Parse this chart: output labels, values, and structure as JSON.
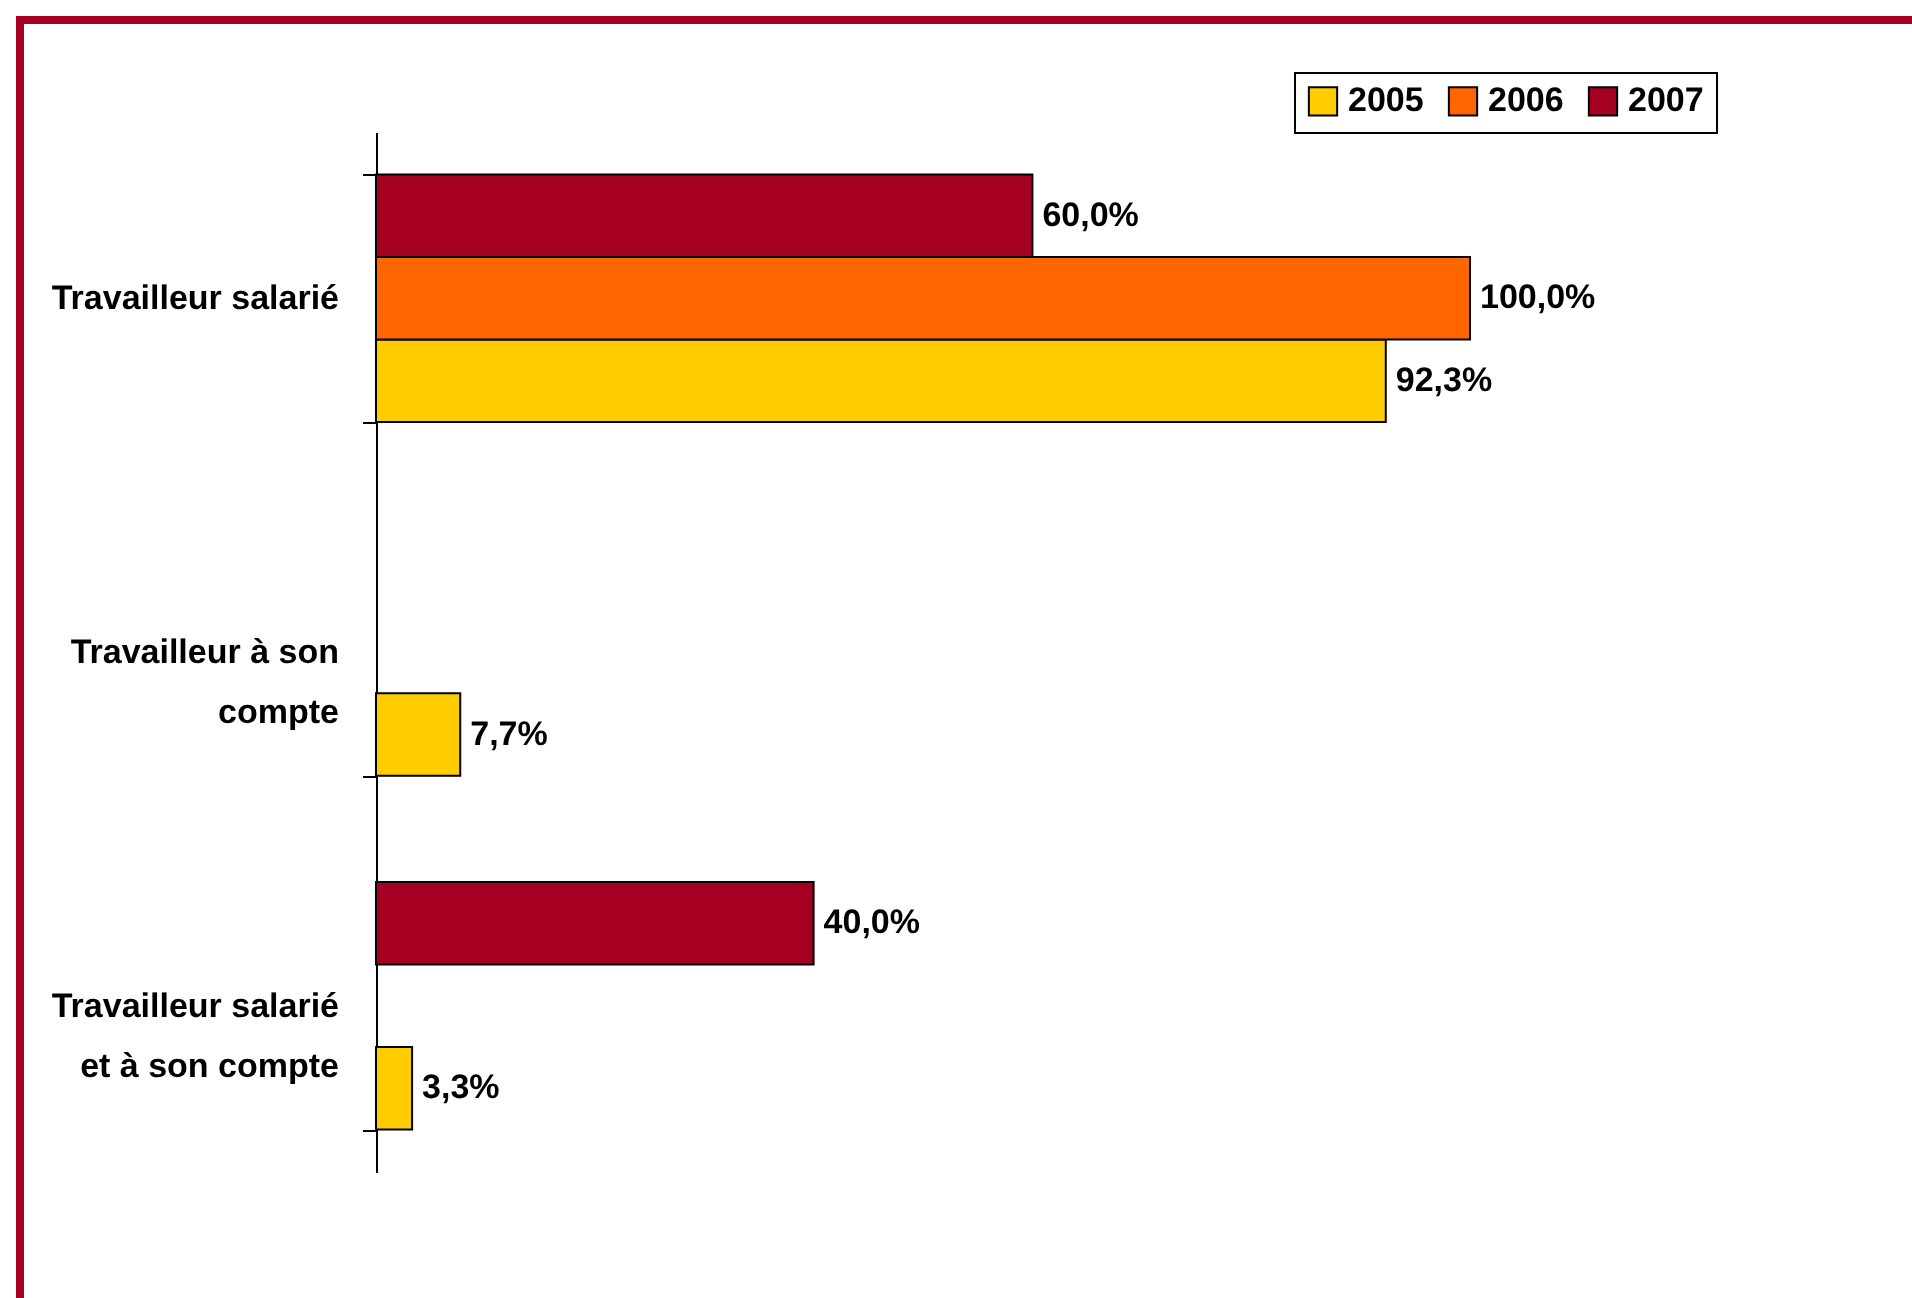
{
  "chart_data": {
    "type": "bar",
    "orientation": "horizontal",
    "categories": [
      "Travailleur salarié",
      "Travailleur à son compte",
      "Travailleur salarié et à son compte"
    ],
    "series": [
      {
        "name": "2005",
        "color": "#ffcc00",
        "values": [
          92.3,
          7.7,
          3.3
        ],
        "value_labels": [
          "92,3%",
          "7,7%",
          "3,3%"
        ]
      },
      {
        "name": "2006",
        "color": "#ff6600",
        "values": [
          100,
          null,
          null
        ],
        "value_labels": [
          "100,0%",
          null,
          null
        ]
      },
      {
        "name": "2007",
        "color": "#a50021",
        "values": [
          60,
          null,
          40
        ],
        "value_labels": [
          "60,0%",
          null,
          "40,0%"
        ]
      }
    ],
    "legend": "top right",
    "grid": false
  }
}
